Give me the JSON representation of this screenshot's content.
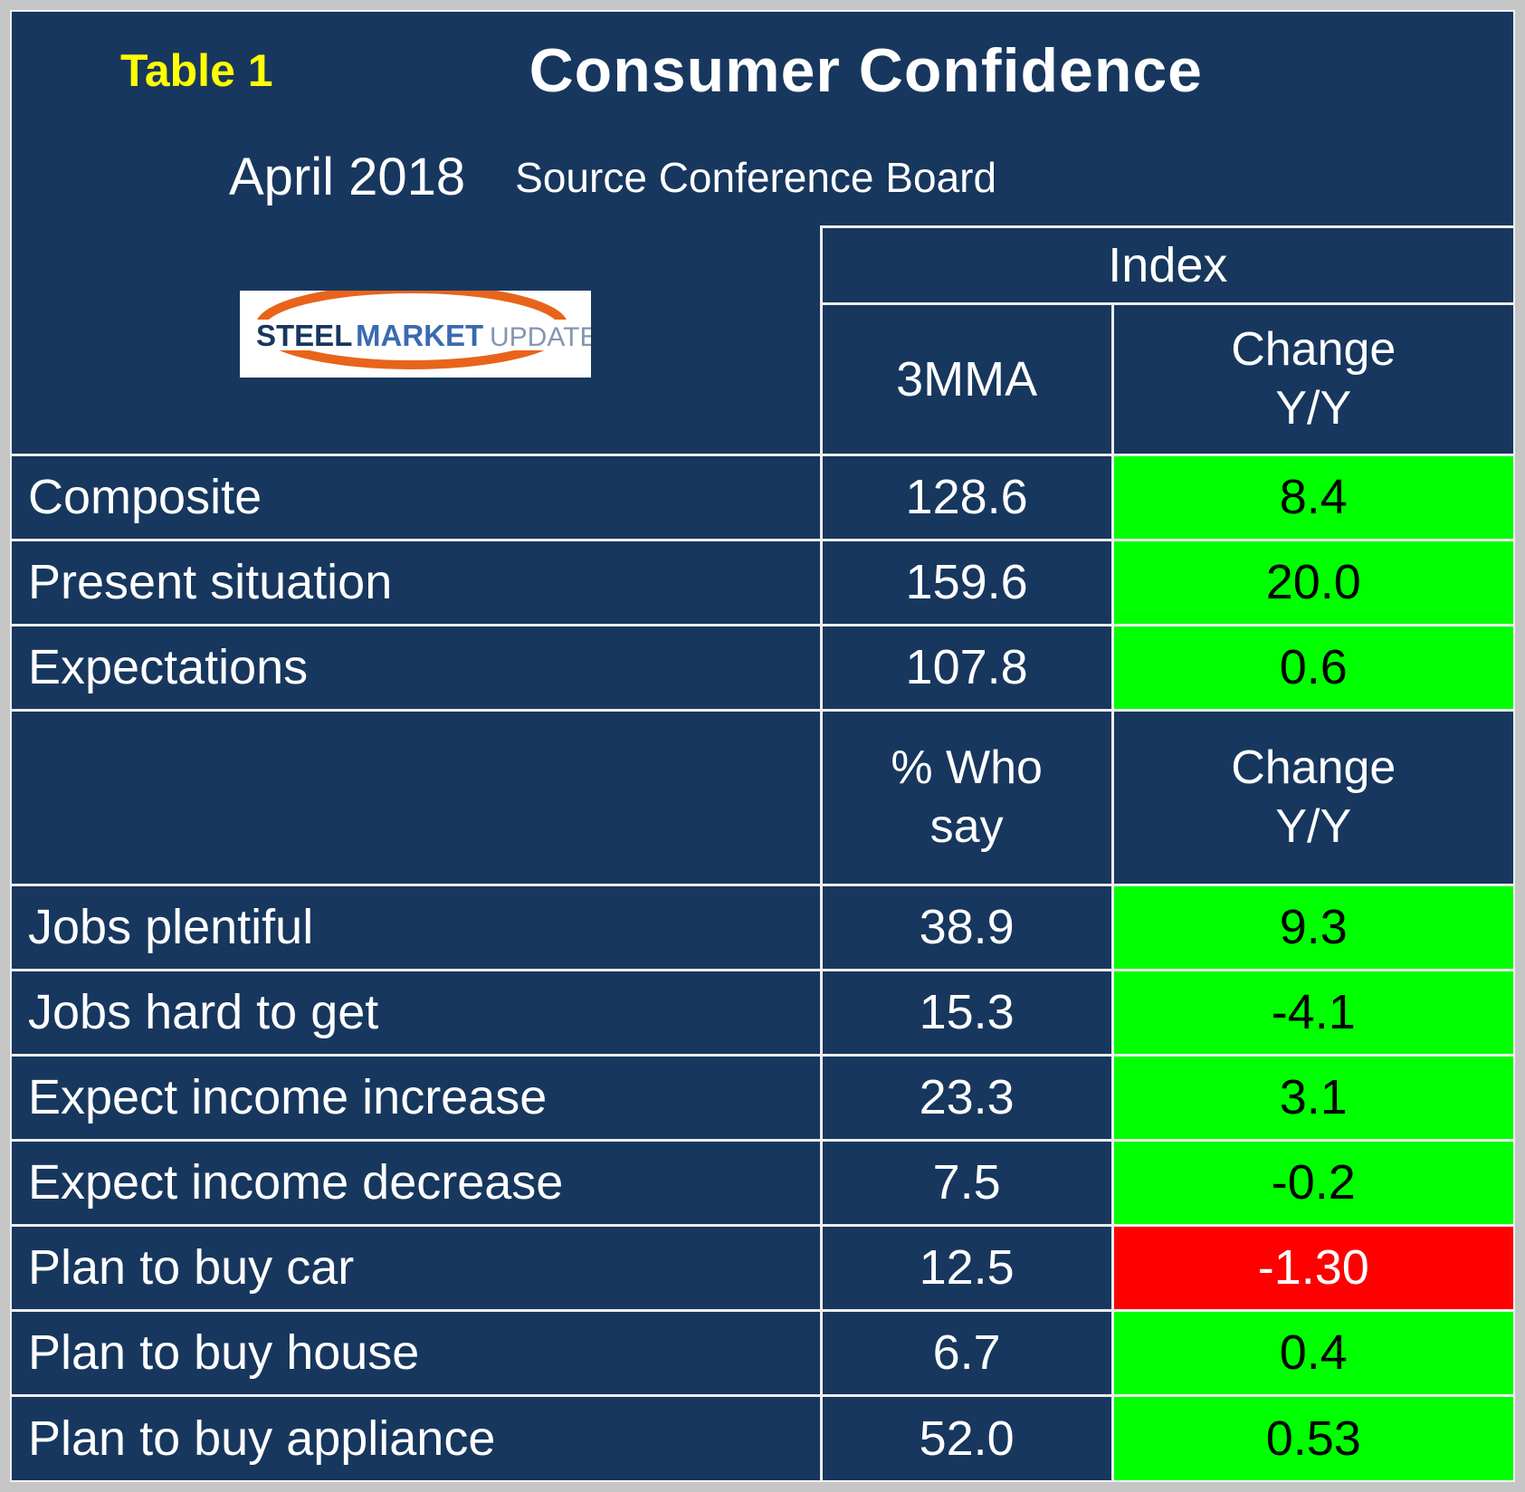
{
  "header": {
    "table_label": "Table 1",
    "title": "Consumer Confidence",
    "date": "April 2018",
    "source": "Source Conference Board"
  },
  "logo": {
    "steel": "STEEL",
    "market": "MARKET",
    "update": "UPDATE"
  },
  "columns": {
    "group": "Index",
    "index_value": "3MMA",
    "change_line1": "Change",
    "change_line2": "Y/Y",
    "who_line1": "% Who",
    "who_line2": "say"
  },
  "colors": {
    "background": "#17375E",
    "positive": "#00FF00",
    "negative": "#FF0000",
    "accent_yellow": "#FFFF00",
    "grid_line": "#EDEDED"
  },
  "chart_data": {
    "type": "table",
    "title": "Consumer Confidence",
    "subtitle": "April 2018 Source Conference Board",
    "sections": [
      {
        "group_header": "Index",
        "value_header": "3MMA",
        "change_header": "Change Y/Y",
        "rows": [
          {
            "label": "Composite",
            "value": "128.6",
            "change": "8.4",
            "change_color": "green"
          },
          {
            "label": "Present situation",
            "value": "159.6",
            "change": "20.0",
            "change_color": "green"
          },
          {
            "label": "Expectations",
            "value": "107.8",
            "change": "0.6",
            "change_color": "green"
          }
        ]
      },
      {
        "group_header": "",
        "value_header": "% Who say",
        "change_header": "Change Y/Y",
        "rows": [
          {
            "label": "Jobs plentiful",
            "value": "38.9",
            "change": "9.3",
            "change_color": "green"
          },
          {
            "label": "Jobs hard to get",
            "value": "15.3",
            "change": "-4.1",
            "change_color": "green"
          },
          {
            "label": "Expect income increase",
            "value": "23.3",
            "change": "3.1",
            "change_color": "green"
          },
          {
            "label": "Expect income decrease",
            "value": "7.5",
            "change": "-0.2",
            "change_color": "green"
          },
          {
            "label": "Plan to buy car",
            "value": "12.5",
            "change": "-1.30",
            "change_color": "red"
          },
          {
            "label": "Plan to buy house",
            "value": "6.7",
            "change": "0.4",
            "change_color": "green"
          },
          {
            "label": "Plan to buy appliance",
            "value": "52.0",
            "change": "0.53",
            "change_color": "green"
          }
        ]
      }
    ]
  }
}
